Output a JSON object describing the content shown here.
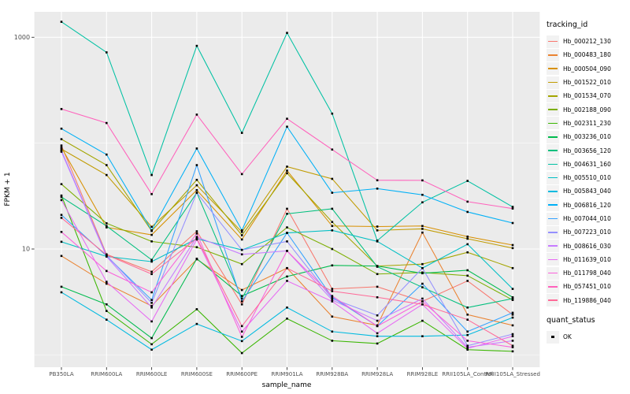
{
  "chart_data": {
    "type": "line",
    "title": "",
    "xlabel": "sample_name",
    "ylabel": "FPKM + 1",
    "y_scale": "log10",
    "ylim": [
      0.75,
      1800
    ],
    "grid": "on",
    "legend_position": "right",
    "legend_title": "tracking_id",
    "point_legend": {
      "title": "quant_status",
      "label": "OK"
    },
    "y_ticks": [
      {
        "label": "1000",
        "value": 1000
      },
      {
        "label": "10",
        "value": 10
      }
    ],
    "y_minor": [
      100,
      1
    ],
    "categories": [
      "PB350LA",
      "RRIM600LA",
      "RRIM600LE",
      "RRIM600SE",
      "RRIM600PE",
      "RRIM901LA",
      "RRIM928BA",
      "RRIM928LA",
      "RRIM928LE",
      "RRII105LA_Control",
      "RRII105LA_Stressed"
    ],
    "series": [
      {
        "name": "Hb_000212_130",
        "color": "#F8766D",
        "values": [
          95,
          8.9,
          6.1,
          14.7,
          3.0,
          24,
          4.2,
          4.4,
          3.2,
          5.0,
          2.4
        ]
      },
      {
        "name": "Hb_000483_180",
        "color": "#EA8331",
        "values": [
          8.6,
          4.7,
          2.9,
          8.0,
          4.1,
          6.6,
          2.3,
          1.9,
          14.3,
          2.4,
          1.9
        ]
      },
      {
        "name": "Hb_000504_090",
        "color": "#D89000",
        "values": [
          91,
          16,
          13.6,
          36,
          12.3,
          55,
          16.5,
          16.3,
          16.5,
          13.1,
          10.9
        ]
      },
      {
        "name": "Hb_001522_010",
        "color": "#C09B00",
        "values": [
          88,
          50,
          16.2,
          40,
          14.5,
          60,
          46,
          15,
          15.5,
          12.5,
          10.2
        ]
      },
      {
        "name": "Hb_001534_070",
        "color": "#A3A500",
        "values": [
          109,
          62,
          14.8,
          45,
          13.5,
          52,
          18,
          6.9,
          7.2,
          9.3,
          6.6
        ]
      },
      {
        "name": "Hb_002188_090",
        "color": "#7CAE00",
        "values": [
          41,
          17.5,
          11.8,
          10.4,
          7.2,
          16,
          10,
          5.8,
          6.0,
          5.6,
          3.3
        ]
      },
      {
        "name": "Hb_002311_230",
        "color": "#39B600",
        "values": [
          32,
          2.6,
          1.26,
          2.7,
          1.04,
          2.2,
          1.36,
          1.28,
          2.1,
          1.12,
          1.08
        ]
      },
      {
        "name": "Hb_003236_010",
        "color": "#00BB4E",
        "values": [
          4.4,
          3.0,
          1.44,
          8.1,
          3.6,
          5.5,
          7.0,
          6.9,
          5.9,
          6.3,
          3.5
        ]
      },
      {
        "name": "Hb_003656_120",
        "color": "#00BF7D",
        "values": [
          31,
          16.5,
          7.9,
          34,
          3.4,
          21.5,
          24,
          6.8,
          4.35,
          2.8,
          3.4
        ]
      },
      {
        "name": "Hb_004631_160",
        "color": "#00C1A3",
        "values": [
          1400,
          720,
          50,
          830,
          125,
          1100,
          190,
          12,
          27.6,
          44,
          25
        ]
      },
      {
        "name": "Hb_005510_010",
        "color": "#00BFC4",
        "values": [
          11.7,
          8.5,
          7.6,
          12.5,
          9.8,
          14.2,
          15,
          11.8,
          6.6,
          11.1,
          4.2
        ]
      },
      {
        "name": "Hb_005843_040",
        "color": "#00BAE0",
        "values": [
          3.9,
          2.15,
          1.12,
          1.96,
          1.35,
          2.8,
          1.66,
          1.5,
          1.5,
          1.54,
          2.25
        ]
      },
      {
        "name": "Hb_006816_120",
        "color": "#00B0F6",
        "values": [
          137,
          78,
          15,
          89,
          15,
          143,
          34,
          37.2,
          32.5,
          22.4,
          17.6
        ]
      },
      {
        "name": "Hb_007044_010",
        "color": "#35A2FF",
        "values": [
          21,
          8.6,
          3.3,
          62,
          3.2,
          14.2,
          3.5,
          1.87,
          4.7,
          1.66,
          2.5
        ]
      },
      {
        "name": "Hb_007223_010",
        "color": "#9590FF",
        "values": [
          85,
          8.7,
          3.1,
          34,
          9.8,
          11.8,
          3.4,
          2.36,
          6.6,
          1.22,
          1.57
        ]
      },
      {
        "name": "Hb_008616_030",
        "color": "#C77CFF",
        "values": [
          83,
          8.5,
          2.8,
          13,
          8.9,
          9.6,
          3.3,
          2.1,
          3.4,
          1.18,
          1.36
        ]
      },
      {
        "name": "Hb_011639_010",
        "color": "#E76BF3",
        "values": [
          29,
          4.9,
          2.07,
          12.3,
          1.66,
          5.0,
          3.2,
          1.6,
          3.0,
          1.15,
          1.5
        ]
      },
      {
        "name": "Hb_011798_040",
        "color": "#FA62DB",
        "values": [
          14.5,
          6.2,
          3.9,
          14,
          1.48,
          9.6,
          3.6,
          1.87,
          3.2,
          1.36,
          1.18
        ]
      },
      {
        "name": "Hb_057451_010",
        "color": "#FF62BC",
        "values": [
          210,
          155,
          33,
          186,
          51,
          170,
          87,
          44.6,
          44.5,
          28,
          24.1
        ]
      },
      {
        "name": "Hb_119886_040",
        "color": "#FF6A98",
        "values": [
          19.7,
          8.8,
          5.8,
          12.6,
          1.87,
          6.6,
          4.0,
          3.5,
          3.0,
          2.15,
          1.22
        ]
      }
    ]
  },
  "colors": {
    "panel_bg": "#EBEBEB",
    "grid": "#FFFFFF",
    "point": "#000000",
    "axis_text": "#4D4D4D",
    "axis_title": "#000000",
    "tick_mark": "#333333",
    "legend_key_bg": "#F2F2F2"
  }
}
